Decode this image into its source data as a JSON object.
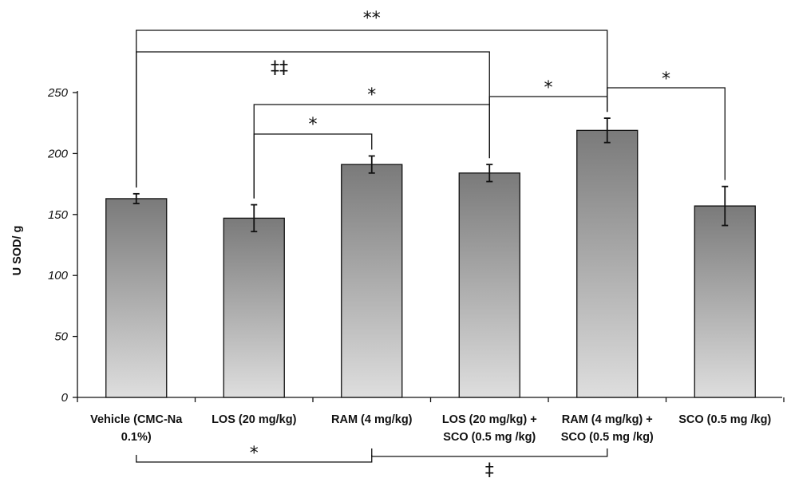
{
  "chart_data": {
    "type": "bar",
    "ylabel": "U SOD/ g",
    "ylim": [
      0,
      250
    ],
    "yticks": [
      "0",
      "50",
      "100",
      "150",
      "200",
      "250"
    ],
    "categories": [
      [
        "Vehicle (CMC-Na",
        "0.1%)"
      ],
      [
        "LOS (20 mg/kg)"
      ],
      [
        "RAM (4 mg/kg)"
      ],
      [
        "LOS (20 mg/kg) +",
        "SCO (0.5 mg /kg)"
      ],
      [
        "RAM (4 mg/kg) +",
        "SCO (0.5 mg /kg)"
      ],
      [
        "SCO (0.5 mg /kg)"
      ]
    ],
    "values": [
      163,
      147,
      191,
      184,
      219,
      157
    ],
    "errors": [
      4,
      11,
      7,
      7,
      10,
      16
    ],
    "bar_gradient": [
      "#7a7a7a",
      "#dedede"
    ],
    "significance": [
      {
        "from": 0,
        "to": 4,
        "label": "**",
        "side": "top"
      },
      {
        "from": 0,
        "to": 3,
        "label": "‡‡",
        "side": "top"
      },
      {
        "from": 1,
        "to": 3,
        "label": "*",
        "side": "top"
      },
      {
        "from": 1,
        "to": 2,
        "label": "*",
        "side": "top"
      },
      {
        "from": 3,
        "to": 4,
        "label": "*",
        "side": "top"
      },
      {
        "from": 4,
        "to": 5,
        "label": "*",
        "side": "top"
      },
      {
        "from": 0,
        "to": 2,
        "label": "*",
        "side": "bottom"
      },
      {
        "from": 2,
        "to": 4,
        "label": "‡",
        "side": "bottom"
      }
    ]
  }
}
